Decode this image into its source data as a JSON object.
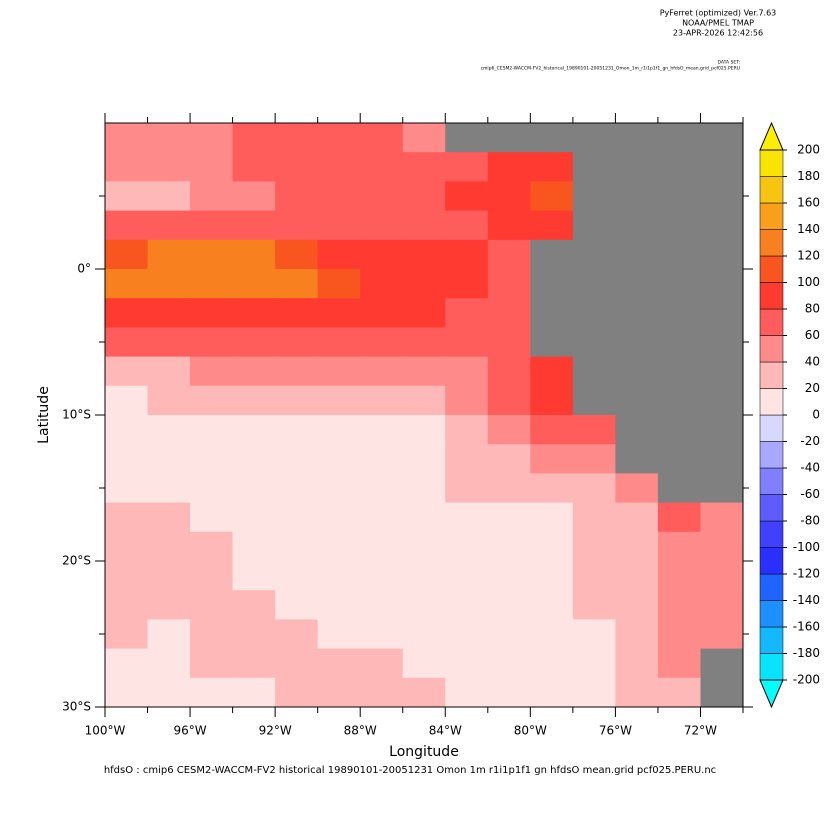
{
  "chart_data": {
    "type": "heatmap",
    "header": [
      "PyFerret (optimized) Ver.7.63",
      "NOAA/PMEL TMAP",
      "23-APR-2026 12:42:56"
    ],
    "dataset_label": "DATA SET:",
    "dataset": "cmip6_CESM2-WACCM-FV2_historical_19890101-20051231_Omon_1m_r1i1p1f1_gn_hfdsO_mean.grid_pcf025.PERU",
    "footer": "hfdsO : cmip6 CESM2-WACCM-FV2 historical 19890101-20051231 Omon 1m r1i1p1f1 gn hfdsO mean.grid pcf025.PERU.nc",
    "xlabel": "Longitude",
    "ylabel": "Latitude",
    "xlim": [
      -100,
      -70
    ],
    "ylim": [
      -30,
      10
    ],
    "xticks": [
      {
        "value": -100,
        "label": "100°W"
      },
      {
        "value": -96,
        "label": "96°W"
      },
      {
        "value": -92,
        "label": "92°W"
      },
      {
        "value": -88,
        "label": "88°W"
      },
      {
        "value": -84,
        "label": "84°W"
      },
      {
        "value": -80,
        "label": "80°W"
      },
      {
        "value": -76,
        "label": "76°W"
      },
      {
        "value": -72,
        "label": "72°W"
      }
    ],
    "yticks": [
      {
        "value": -30,
        "label": "30°S"
      },
      {
        "value": -20,
        "label": "20°S"
      },
      {
        "value": -10,
        "label": "10°S"
      },
      {
        "value": 0,
        "label": "0°"
      }
    ],
    "x": [
      -99,
      -97,
      -95,
      -93,
      -91,
      -89,
      -87,
      -85,
      -83,
      -81,
      -79,
      -77,
      -75,
      -73,
      -71
    ],
    "y": [
      9,
      7,
      5,
      3,
      1,
      -1,
      -3,
      -5,
      -7,
      -9,
      -11,
      -13,
      -15,
      -17,
      -19,
      -21,
      -23,
      -25,
      -27,
      -29
    ],
    "z": [
      [
        50,
        50,
        50,
        70,
        70,
        70,
        70,
        50,
        null,
        null,
        null,
        null,
        null,
        null,
        null
      ],
      [
        50,
        50,
        50,
        70,
        70,
        70,
        70,
        70,
        70,
        90,
        90,
        null,
        null,
        null,
        null
      ],
      [
        30,
        30,
        50,
        50,
        70,
        70,
        70,
        70,
        90,
        90,
        110,
        null,
        null,
        null,
        null
      ],
      [
        70,
        70,
        70,
        70,
        70,
        70,
        70,
        70,
        70,
        90,
        90,
        null,
        null,
        null,
        null
      ],
      [
        110,
        130,
        130,
        130,
        110,
        90,
        90,
        90,
        90,
        70,
        null,
        null,
        null,
        null,
        null
      ],
      [
        130,
        130,
        130,
        130,
        130,
        110,
        90,
        90,
        90,
        70,
        null,
        null,
        null,
        null,
        null
      ],
      [
        90,
        90,
        90,
        90,
        90,
        90,
        90,
        90,
        70,
        70,
        null,
        null,
        null,
        null,
        null
      ],
      [
        70,
        70,
        70,
        70,
        70,
        70,
        70,
        70,
        70,
        70,
        null,
        null,
        null,
        null,
        null
      ],
      [
        30,
        30,
        50,
        50,
        50,
        50,
        50,
        50,
        50,
        70,
        90,
        null,
        null,
        null,
        null
      ],
      [
        10,
        30,
        30,
        30,
        30,
        30,
        30,
        30,
        50,
        70,
        90,
        null,
        null,
        null,
        null
      ],
      [
        10,
        10,
        10,
        10,
        10,
        10,
        10,
        10,
        30,
        50,
        70,
        70,
        null,
        null,
        null
      ],
      [
        10,
        10,
        10,
        10,
        10,
        10,
        10,
        10,
        30,
        30,
        50,
        50,
        null,
        null,
        null
      ],
      [
        10,
        10,
        10,
        10,
        10,
        10,
        10,
        10,
        30,
        30,
        30,
        30,
        50,
        null,
        null
      ],
      [
        30,
        30,
        10,
        10,
        10,
        10,
        10,
        10,
        10,
        10,
        10,
        30,
        30,
        70,
        50
      ],
      [
        30,
        30,
        30,
        10,
        10,
        10,
        10,
        10,
        10,
        10,
        10,
        30,
        30,
        50,
        50
      ],
      [
        30,
        30,
        30,
        10,
        10,
        10,
        10,
        10,
        10,
        10,
        10,
        30,
        30,
        50,
        50
      ],
      [
        30,
        30,
        30,
        30,
        10,
        10,
        10,
        10,
        10,
        10,
        10,
        30,
        30,
        50,
        50
      ],
      [
        30,
        10,
        30,
        30,
        30,
        10,
        10,
        10,
        10,
        10,
        10,
        10,
        30,
        50,
        50
      ],
      [
        10,
        10,
        30,
        30,
        30,
        30,
        30,
        10,
        10,
        10,
        10,
        10,
        30,
        50,
        null
      ],
      [
        10,
        10,
        10,
        10,
        30,
        30,
        30,
        30,
        10,
        10,
        10,
        10,
        30,
        30,
        null
      ]
    ],
    "levels": [
      -200,
      -180,
      -160,
      -140,
      -120,
      -100,
      -80,
      -60,
      -40,
      -20,
      0,
      20,
      40,
      60,
      80,
      100,
      120,
      140,
      160,
      180,
      200
    ],
    "colors": [
      "#08e4ff",
      "#14b8ff",
      "#1c90ff",
      "#2064ff",
      "#2a30ff",
      "#4040ff",
      "#5c5cff",
      "#8080ff",
      "#a8a8ff",
      "#d8d8ff",
      "#ffe4e4",
      "#ffb8b8",
      "#ff8a8a",
      "#ff5c5c",
      "#ff3a30",
      "#f8561e",
      "#f8801e",
      "#f8a01a",
      "#f8c412",
      "#f8e400"
    ],
    "under_color": "#00ffff",
    "over_color": "#ffee00",
    "missing_color": "#808080"
  }
}
